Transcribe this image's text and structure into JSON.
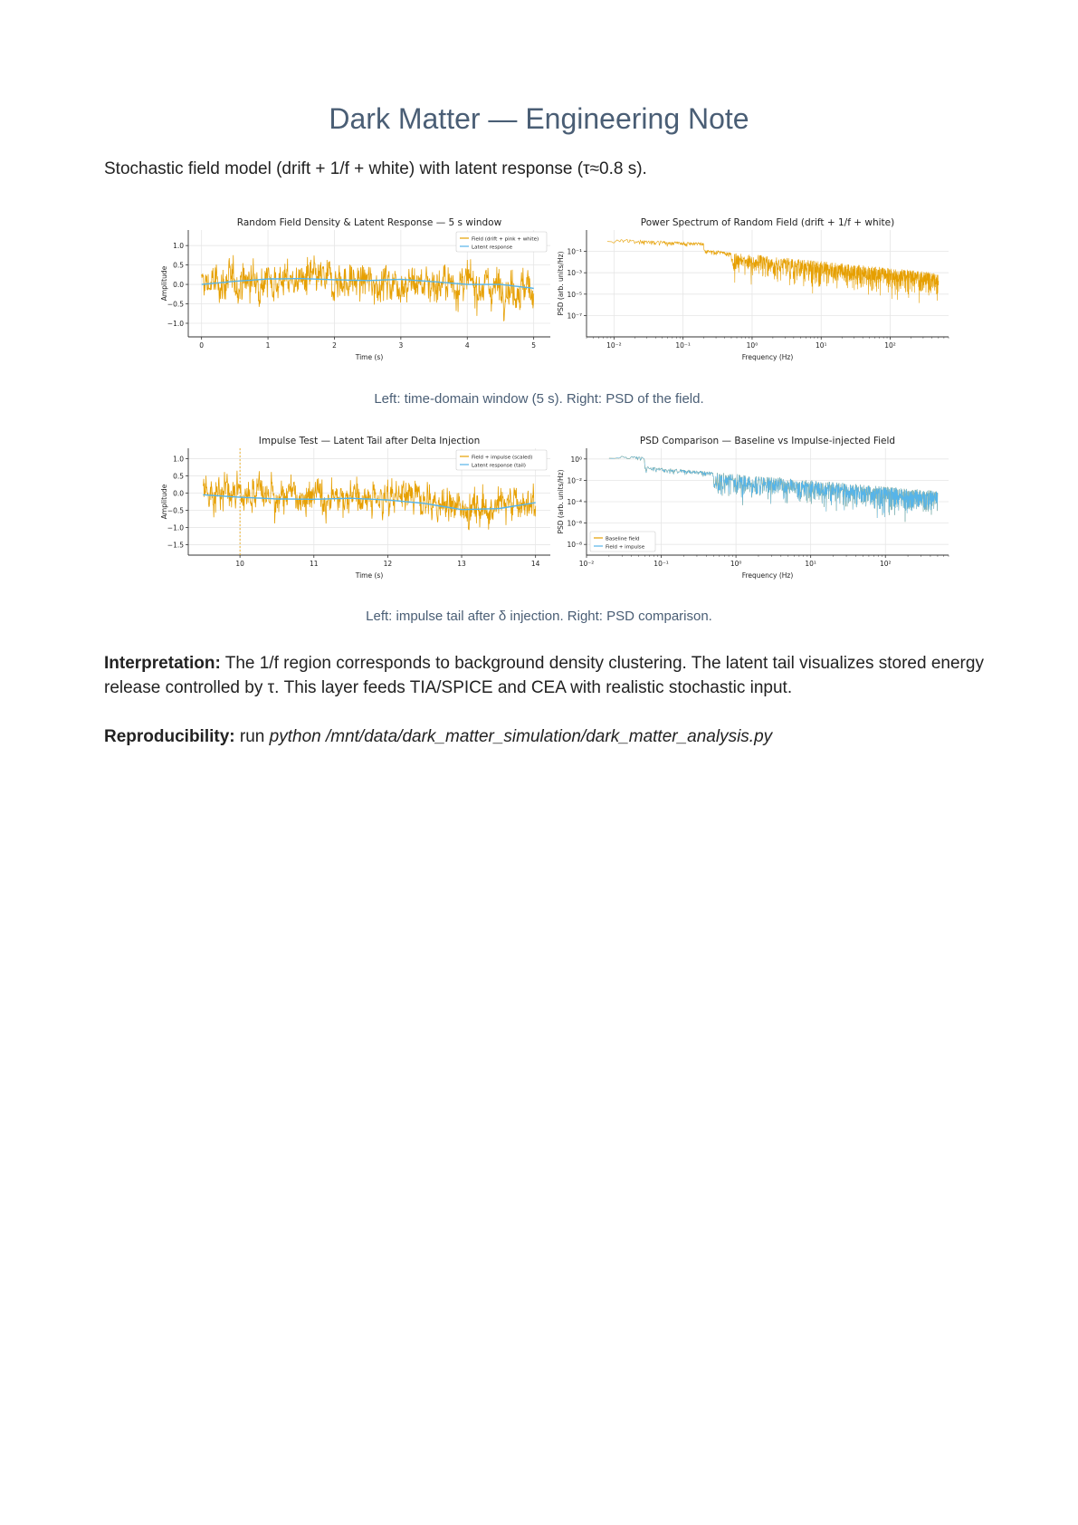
{
  "document": {
    "title": "Dark Matter — Engineering Note",
    "subtitle": "Stochastic field model (drift + 1/f + white) with latent response (τ≈0.8 s).",
    "caption_1": "Left: time-domain window (5 s). Right: PSD of the field.",
    "caption_2": "Left: impulse tail after δ injection. Right: PSD comparison.",
    "interpretation_label": "Interpretation:",
    "interpretation_text": " The 1/f region corresponds to background density clustering. The latent tail visualizes stored energy release controlled by τ. This layer feeds TIA/SPICE and CEA with realistic stochastic input.",
    "reproducibility_label": "Reproducibility:",
    "reproducibility_prefix": " run ",
    "reproducibility_command": "python /mnt/data/dark_matter_simulation/dark_matter_analysis.py"
  },
  "colors": {
    "title": "#4a5e75",
    "field": "#e69f00",
    "latent": "#56b4e9",
    "grid": "#e6e6e6",
    "axis": "#333333"
  },
  "chart_data": [
    {
      "type": "line",
      "title": "Random Field Density & Latent Response — 5 s window",
      "xlabel": "Time (s)",
      "ylabel": "Amplitude",
      "xlim": [
        -0.2,
        5.25
      ],
      "ylim": [
        -1.35,
        1.4
      ],
      "xticks": [
        "0",
        "1",
        "2",
        "3",
        "4",
        "5"
      ],
      "yticks": [
        "1.0",
        "0.5",
        "0.0",
        "−0.5",
        "−1.0"
      ],
      "grid": true,
      "legend_position": "top-right",
      "series": [
        {
          "name": "Field (drift + pink + white)",
          "color": "#e69f00",
          "x_range": [
            0,
            5
          ],
          "noise_amplitude": 0.45,
          "drift_points": [
            [
              0,
              0.0
            ],
            [
              1,
              0.12
            ],
            [
              2,
              0.1
            ],
            [
              3,
              0.05
            ],
            [
              4,
              0.0
            ],
            [
              5,
              -0.12
            ]
          ]
        },
        {
          "name": "Latent response",
          "color": "#56b4e9",
          "x_range": [
            0,
            5
          ],
          "drift_points": [
            [
              0,
              0.0
            ],
            [
              0.5,
              0.08
            ],
            [
              1,
              0.14
            ],
            [
              1.5,
              0.15
            ],
            [
              2,
              0.12
            ],
            [
              2.5,
              0.1
            ],
            [
              3,
              0.13
            ],
            [
              3.5,
              0.07
            ],
            [
              4,
              0.0
            ],
            [
              4.5,
              0.0
            ],
            [
              5,
              -0.1
            ]
          ]
        }
      ]
    },
    {
      "type": "line",
      "title": "Power Spectrum of Random Field (drift + 1/f + white)",
      "xlabel": "Frequency (Hz)",
      "ylabel": "PSD (arb. units/Hz)",
      "xscale": "log",
      "yscale": "log",
      "xlim": [
        0.004,
        700
      ],
      "ylim": [
        1e-09,
        10
      ],
      "xticks": [
        "10⁻²",
        "10⁻¹",
        "10⁰",
        "10¹",
        "10²"
      ],
      "yticks": [
        "10⁻¹",
        "10⁻³",
        "10⁻⁵",
        "10⁻⁷"
      ],
      "grid": true,
      "series": [
        {
          "name": "",
          "color": "#e69f00",
          "x_range": [
            0.008,
            500
          ],
          "psd_start": 1.5,
          "psd_knee": 0.2,
          "psd_end": 0.001
        }
      ]
    },
    {
      "type": "line",
      "title": "Impulse Test — Latent Tail after Delta Injection",
      "xlabel": "Time (s)",
      "ylabel": "Amplitude",
      "xlim": [
        9.3,
        14.2
      ],
      "ylim": [
        -1.8,
        1.3
      ],
      "xticks": [
        "10",
        "11",
        "12",
        "13",
        "14"
      ],
      "yticks": [
        "1.0",
        "0.5",
        "0.0",
        "−0.5",
        "−1.0",
        "−1.5"
      ],
      "grid": true,
      "legend_position": "top-right",
      "impulse_time": 10.0,
      "series": [
        {
          "name": "Field + impulse (scaled)",
          "color": "#e69f00",
          "x_range": [
            9.5,
            14
          ],
          "noise_amplitude": 0.5,
          "drift_points": [
            [
              9.5,
              0.0
            ],
            [
              10.5,
              -0.1
            ],
            [
              11.5,
              -0.1
            ],
            [
              12.5,
              -0.25
            ],
            [
              13,
              -0.45
            ],
            [
              13.5,
              -0.35
            ],
            [
              14,
              -0.25
            ]
          ]
        },
        {
          "name": "Latent response (tail)",
          "color": "#56b4e9",
          "x_range": [
            9.5,
            14
          ],
          "drift_points": [
            [
              9.5,
              -0.05
            ],
            [
              10,
              -0.12
            ],
            [
              10.5,
              -0.17
            ],
            [
              11,
              -0.18
            ],
            [
              11.5,
              -0.15
            ],
            [
              12,
              -0.2
            ],
            [
              12.5,
              -0.3
            ],
            [
              13,
              -0.48
            ],
            [
              13.5,
              -0.45
            ],
            [
              14,
              -0.28
            ]
          ]
        }
      ]
    },
    {
      "type": "line",
      "title": "PSD Comparison — Baseline vs Impulse-injected Field",
      "xlabel": "Frequency (Hz)",
      "ylabel": "PSD (arb. units/Hz)",
      "xscale": "log",
      "yscale": "log",
      "xlim": [
        0.01,
        700
      ],
      "ylim": [
        1e-09,
        10
      ],
      "xticks": [
        "10⁻²",
        "10⁻¹",
        "10⁰",
        "10¹",
        "10²"
      ],
      "yticks": [
        "10⁰",
        "10⁻²",
        "10⁻⁴",
        "10⁻⁶",
        "10⁻⁸"
      ],
      "grid": true,
      "legend_position": "bottom-left",
      "series": [
        {
          "name": "Baseline field",
          "color": "#e69f00",
          "x_range": [
            0.02,
            500
          ],
          "psd_start": 2.0,
          "psd_knee": 0.06,
          "psd_end": 0.001
        },
        {
          "name": "Field + impulse",
          "color": "#56b4e9",
          "x_range": [
            0.02,
            500
          ],
          "psd_start": 2.0,
          "psd_knee": 0.06,
          "psd_end": 0.001
        }
      ]
    }
  ]
}
